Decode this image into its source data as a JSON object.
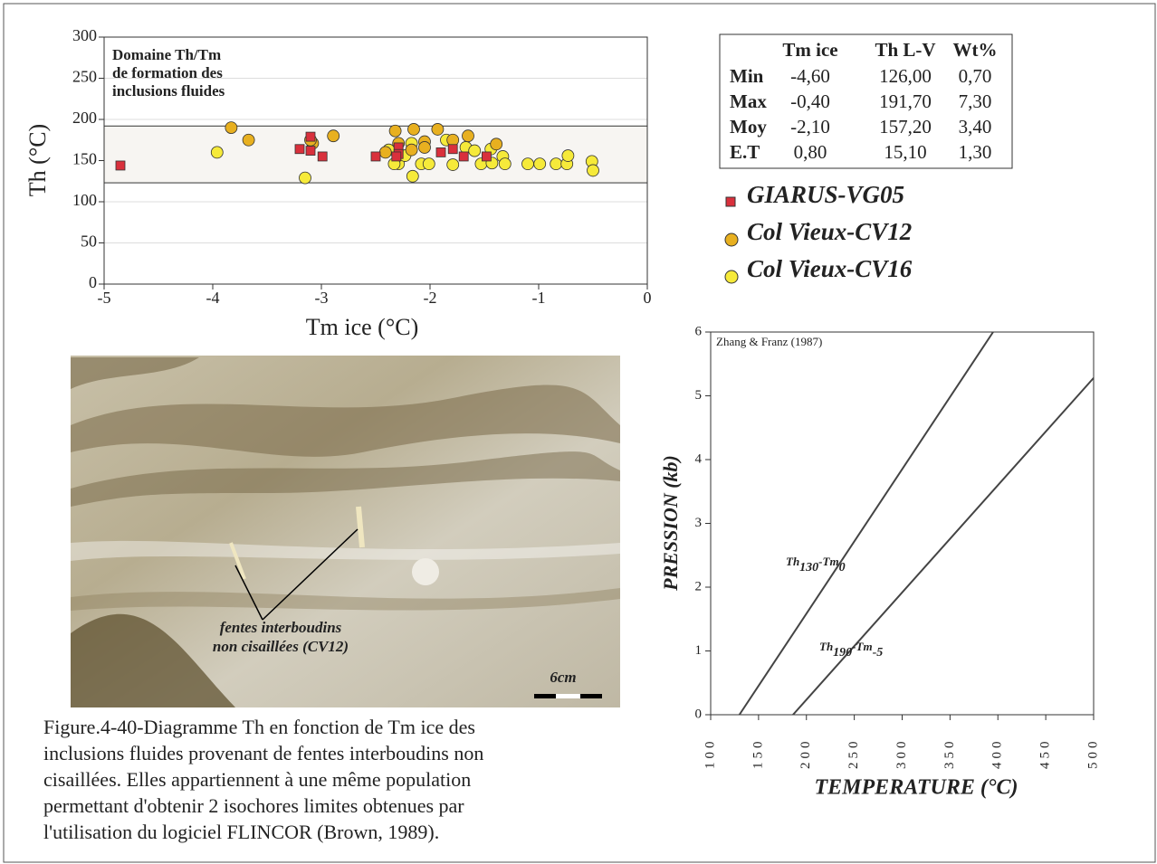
{
  "chart_data": [
    {
      "type": "scatter",
      "x_label": "Tm ice (°C)",
      "y_label": "Th (°C)",
      "xlim": [
        -5,
        0
      ],
      "ylim": [
        0,
        300
      ],
      "xticks": [
        -5,
        -4,
        -3,
        -2,
        -1,
        0
      ],
      "yticks": [
        0,
        50,
        100,
        150,
        200,
        250,
        300
      ],
      "grid": true,
      "annotation": [
        "Domaine Th/Tm",
        "de formation des",
        "inclusions fluides"
      ],
      "domain_band": [
        123,
        192
      ],
      "series": [
        {
          "name": "GIARUS-VG05",
          "marker": "square",
          "color": "#d9303c",
          "x": [
            -4.85,
            -3.2,
            -3.1,
            -3.1,
            -2.99,
            -2.5,
            -2.29,
            -2.29,
            -2.31,
            -1.9,
            -1.79,
            -1.69,
            -1.48
          ],
          "values": [
            144,
            164,
            179,
            162,
            155,
            155,
            166,
            158,
            155,
            160,
            164,
            155,
            155
          ]
        },
        {
          "name": "Col Vieux-CV12",
          "marker": "circle",
          "color": "#e8b020",
          "x": [
            -3.83,
            -3.67,
            -3.08,
            -3.1,
            -2.89,
            -2.32,
            -2.29,
            -2.41,
            -2.17,
            -2.05,
            -2.05,
            -1.79,
            -1.65,
            -1.39,
            -1.93,
            -2.15
          ],
          "values": [
            190,
            175,
            171,
            175,
            180,
            186,
            171,
            160,
            163,
            173,
            166,
            175,
            180,
            170,
            188,
            188
          ]
        },
        {
          "name": "Col Vieux-CV16",
          "marker": "circle",
          "color": "#f6ea3a",
          "x": [
            -3.96,
            -3.15,
            -2.29,
            -2.23,
            -2.17,
            -2.16,
            -2.08,
            -2.01,
            -1.85,
            -1.79,
            -1.67,
            -1.59,
            -1.53,
            -1.44,
            -1.43,
            -1.33,
            -1.31,
            -1.1,
            -0.99,
            -0.84,
            -0.74,
            -0.73,
            -0.51,
            -0.5,
            -2.33,
            -2.38
          ],
          "values": [
            160,
            129,
            146,
            156,
            171,
            131,
            146,
            146,
            175,
            145,
            166,
            162,
            146,
            164,
            147,
            155,
            146,
            146,
            146,
            146,
            146,
            156,
            149,
            138,
            146,
            163
          ]
        }
      ]
    },
    {
      "type": "line",
      "x_label": "TEMPERATURE (°C)",
      "y_label": "PRESSION (kb)",
      "note": "Zhang & Franz (1987)",
      "xlim": [
        100,
        500
      ],
      "ylim": [
        0,
        6
      ],
      "xticks": [
        100,
        150,
        200,
        250,
        300,
        350,
        400,
        450,
        500
      ],
      "yticks": [
        0,
        1,
        2,
        3,
        4,
        5,
        6
      ],
      "series": [
        {
          "label_parts": [
            "Th",
            "130",
            "-Tm",
            "0"
          ],
          "color": "#444444",
          "x": [
            130,
            395
          ],
          "values": [
            0,
            6
          ]
        },
        {
          "label_parts": [
            "Th",
            "190",
            "-Tm",
            "-5"
          ],
          "color": "#444444",
          "x": [
            186,
            500
          ],
          "values": [
            0,
            5.28
          ]
        }
      ]
    }
  ],
  "table": {
    "columns": [
      "Tm ice",
      "Th L-V",
      "Wt%"
    ],
    "rows": [
      {
        "label": "Min",
        "values": [
          "-4,60",
          "126,00",
          "0,70"
        ]
      },
      {
        "label": "Max",
        "values": [
          "-0,40",
          "191,70",
          "7,30"
        ]
      },
      {
        "label": "Moy",
        "values": [
          "-2,10",
          "157,20",
          "3,40"
        ]
      },
      {
        "label": "E.T",
        "values": [
          "0,80",
          "15,10",
          "1,30"
        ]
      }
    ]
  },
  "photo": {
    "annotation": [
      "fentes  interboudins",
      "non cisaillées (CV12)"
    ],
    "scale": "6cm"
  },
  "caption": [
    "Figure.4-40-Diagramme Th en fonction de Tm ice des",
    "inclusions fluides provenant de fentes interboudins non",
    "cisaillées. Elles appartiennent à une même population",
    "permettant d'obtenir 2 isochores limites obtenues par",
    "l'utilisation du logiciel FLINCOR (Brown, 1989)."
  ]
}
